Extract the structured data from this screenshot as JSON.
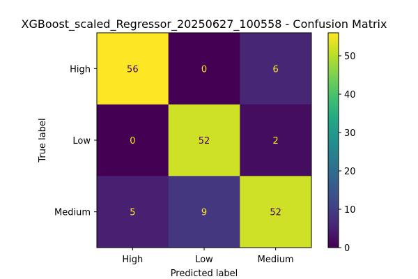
{
  "chart_data": {
    "type": "heatmap",
    "title": "XGBoost_scaled_Regressor_20250627_100558 - Confusion Matrix",
    "xlabel": "Predicted label",
    "ylabel": "True label",
    "x_categories": [
      "High",
      "Low",
      "Medium"
    ],
    "y_categories": [
      "High",
      "Low",
      "Medium"
    ],
    "values": [
      [
        56,
        0,
        6
      ],
      [
        0,
        52,
        2
      ],
      [
        5,
        9,
        52
      ]
    ],
    "colormap": "viridis",
    "colorbar": {
      "range": [
        0,
        56
      ],
      "ticks": [
        0,
        10,
        20,
        30,
        40,
        50
      ]
    },
    "text_color_light": "#fde725",
    "text_color_dark": "#440154",
    "grid": false
  }
}
